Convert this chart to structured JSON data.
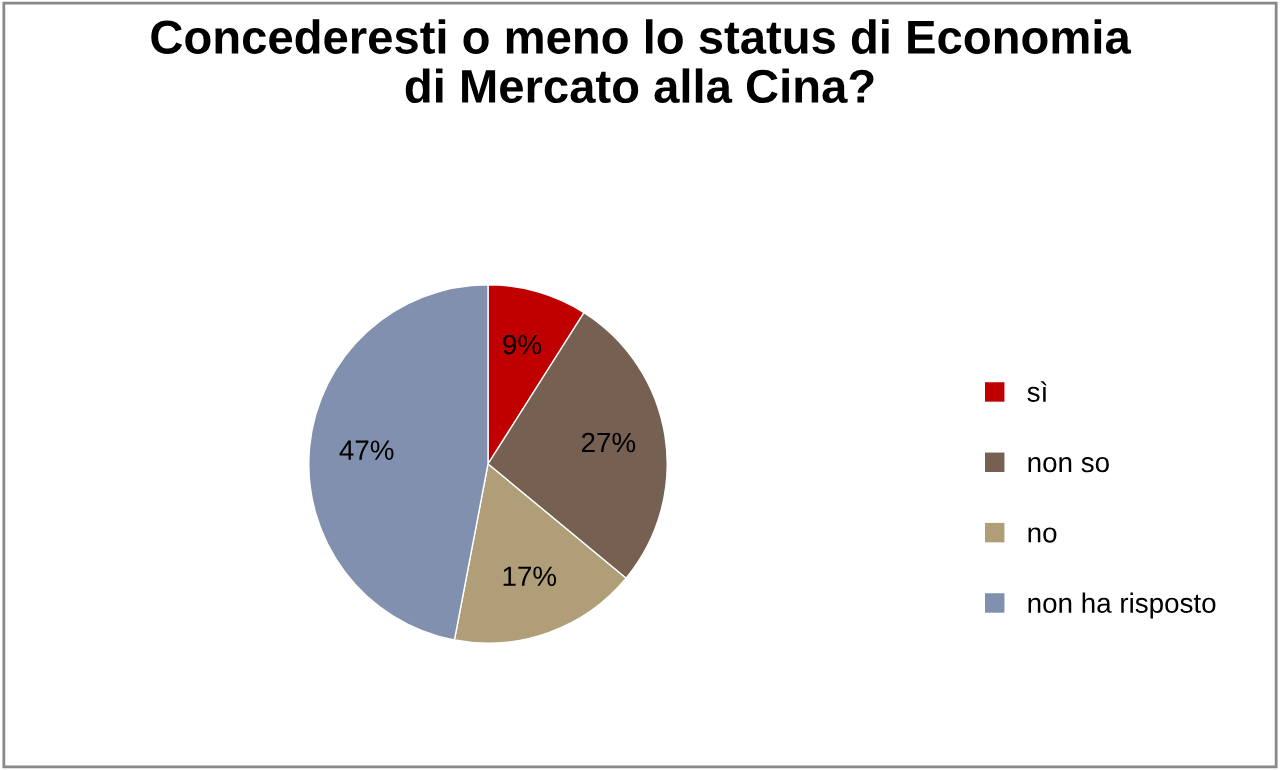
{
  "chart_data": {
    "type": "pie",
    "title": "Concederesti o meno lo status di Economia\ndi Mercato alla Cina?",
    "categories": [
      "sì",
      "non so",
      "no",
      "non ha risposto"
    ],
    "values": [
      9,
      27,
      17,
      47
    ],
    "colors": [
      "#c00000",
      "#766052",
      "#b09e78",
      "#8090ae"
    ],
    "value_labels": [
      "9%",
      "27%",
      "17%",
      "47%"
    ],
    "legend": "right"
  }
}
